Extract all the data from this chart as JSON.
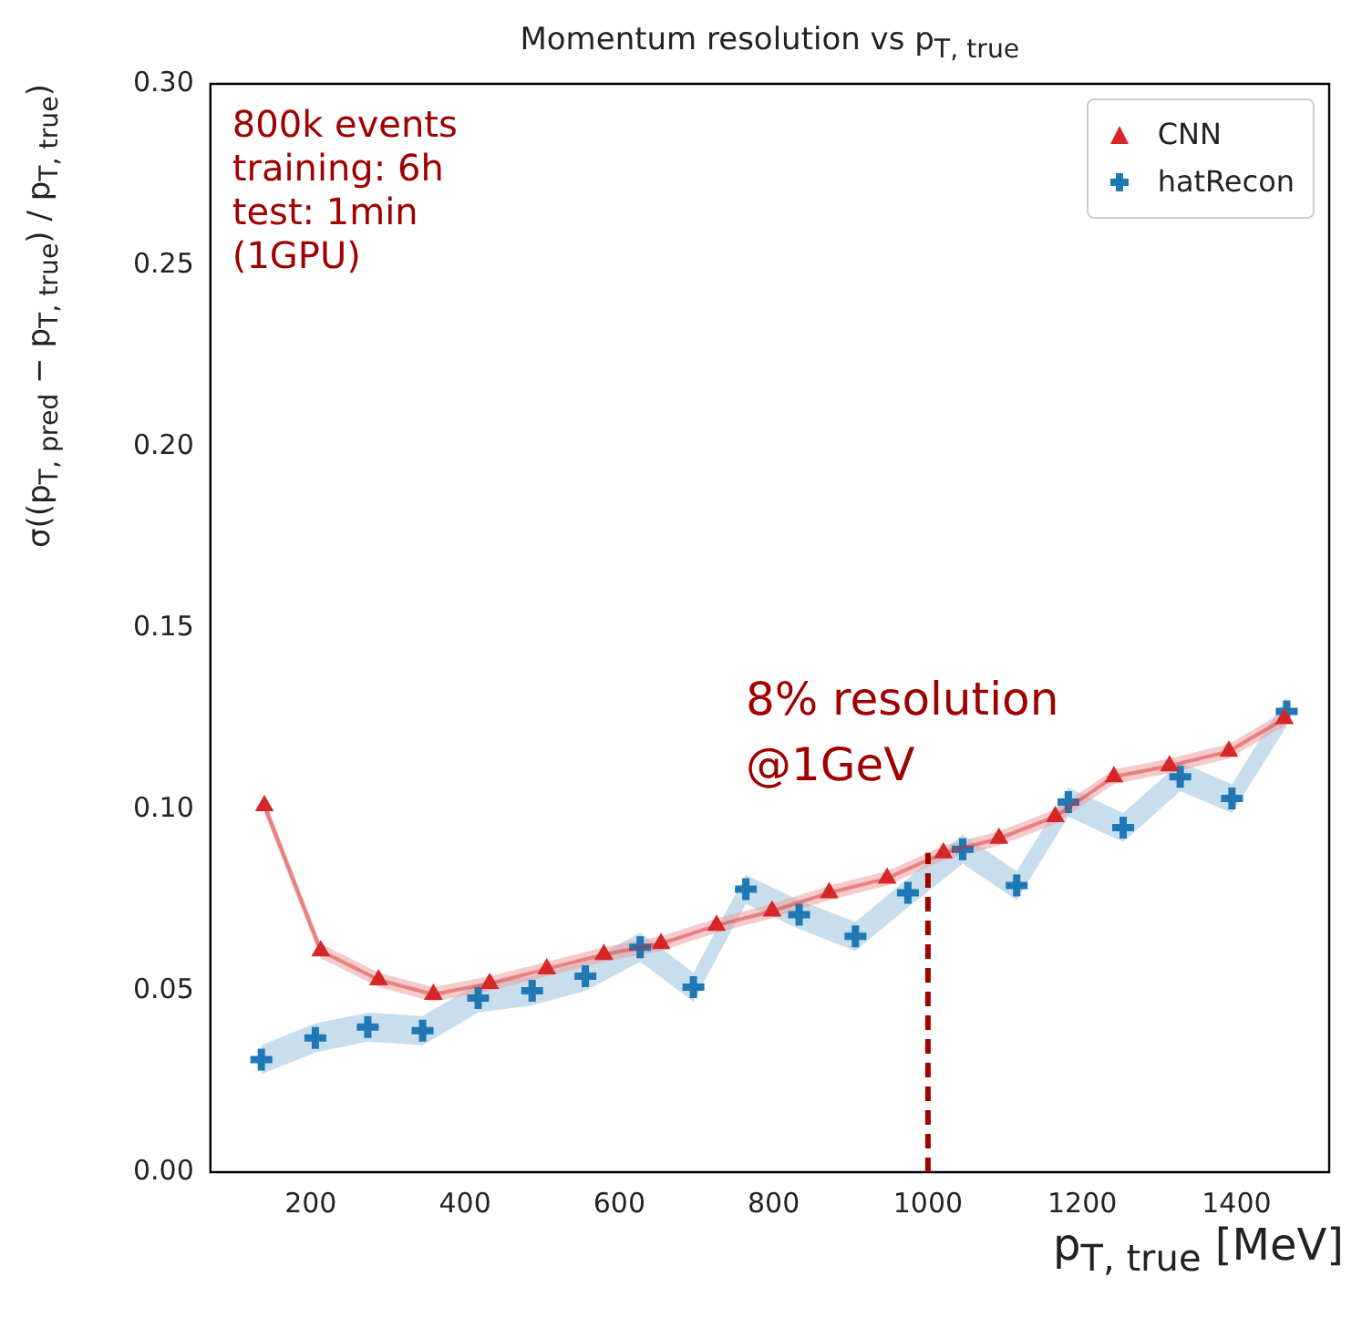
{
  "chart_data": {
    "type": "line",
    "title": "Momentum resolution vs p$_{T, true}$",
    "xlabel": "p$_{T, true}$ [MeV]",
    "ylabel": "σ((p$_{T, pred}$ − p$_{T, true}$) / p$_{T, true}$)",
    "xlim": [
      70,
      1520
    ],
    "ylim": [
      0,
      0.3
    ],
    "xticks": [
      200,
      400,
      600,
      800,
      1000,
      1200,
      1400
    ],
    "yticks": [
      {
        "value": 0,
        "label": "0.00"
      },
      {
        "value": 0.05,
        "label": "0.05"
      },
      {
        "value": 0.1,
        "label": "0.10"
      },
      {
        "value": 0.15,
        "label": "0.15"
      },
      {
        "value": 0.2,
        "label": "0.20"
      },
      {
        "value": 0.25,
        "label": "0.25"
      },
      {
        "value": 0.3,
        "label": "0.30"
      }
    ],
    "grid": false,
    "legend": "top right",
    "series": [
      {
        "name": "CNN",
        "marker": "triangle",
        "line_style": "solid",
        "color": "#d62728",
        "x": [
          140,
          213,
          288,
          359,
          432,
          506,
          580,
          654,
          726,
          798,
          872,
          947,
          1020,
          1092,
          1165,
          1241,
          1313,
          1390,
          1462
        ],
        "values": [
          0.101,
          0.061,
          0.053,
          0.049,
          0.052,
          0.056,
          0.06,
          0.063,
          0.068,
          0.072,
          0.077,
          0.081,
          0.088,
          0.092,
          0.098,
          0.109,
          0.112,
          0.116,
          0.125
        ],
        "lower": [
          0.099,
          0.059,
          0.051,
          0.047,
          0.05,
          0.054,
          0.058,
          0.061,
          0.066,
          0.07,
          0.075,
          0.079,
          0.086,
          0.09,
          0.096,
          0.107,
          0.11,
          0.114,
          0.123
        ],
        "upper": [
          0.103,
          0.063,
          0.055,
          0.051,
          0.054,
          0.058,
          0.062,
          0.065,
          0.07,
          0.074,
          0.079,
          0.083,
          0.09,
          0.094,
          0.1,
          0.111,
          0.114,
          0.118,
          0.127
        ]
      },
      {
        "name": "hatRecon",
        "type": "scatter",
        "marker": "cross",
        "color": "#1f77b4",
        "x": [
          136,
          206,
          274,
          345,
          417,
          487,
          556,
          627,
          696,
          764,
          833,
          906,
          974,
          1045,
          1115,
          1182,
          1253,
          1327,
          1394,
          1465
        ],
        "values": [
          0.031,
          0.037,
          0.04,
          0.039,
          0.048,
          0.05,
          0.054,
          0.062,
          0.051,
          0.078,
          0.071,
          0.065,
          0.077,
          0.089,
          0.079,
          0.102,
          0.095,
          0.109,
          0.103,
          0.127
        ],
        "lower": [
          0.027,
          0.033,
          0.036,
          0.035,
          0.044,
          0.046,
          0.05,
          0.058,
          0.047,
          0.074,
          0.067,
          0.061,
          0.073,
          0.085,
          0.075,
          0.098,
          0.091,
          0.105,
          0.099,
          0.123
        ],
        "upper": [
          0.035,
          0.041,
          0.044,
          0.043,
          0.052,
          0.054,
          0.058,
          0.066,
          0.055,
          0.082,
          0.075,
          0.069,
          0.081,
          0.093,
          0.083,
          0.106,
          0.099,
          0.113,
          0.107,
          0.131
        ]
      }
    ],
    "ref_lines": [
      {
        "axis": "x",
        "value": 1000,
        "color": "#a00000",
        "line_style": "dashed"
      }
    ],
    "annotations": [
      "800k events",
      "training: 6h",
      "test: 1min",
      "(1GPU)",
      {
        "text": "8% resolution\n@1GeV",
        "x": 1000,
        "y": 0.088
      }
    ]
  }
}
